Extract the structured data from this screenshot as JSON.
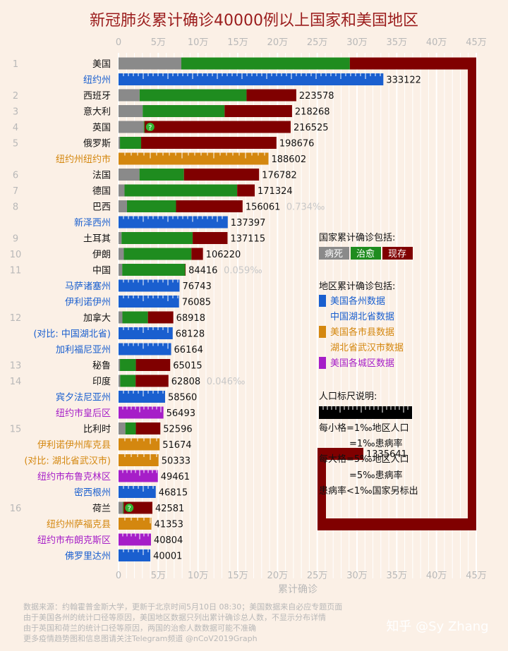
{
  "chart_data": {
    "type": "bar",
    "title": "新冠肺炎累计确诊40000例以上国家和美国地区",
    "xlabel": "累计确诊",
    "xlim": [
      0,
      450000
    ],
    "x_ticks": [
      "0",
      "5万",
      "10万",
      "15万",
      "20万",
      "25万",
      "30万",
      "35万",
      "40万",
      "45万"
    ],
    "grid": true,
    "colors": {
      "deaths": "#8a8a8a",
      "recovered": "#1f8c1f",
      "active": "#800000",
      "us_state": "#1a5fcf",
      "us_county": "#d4870f",
      "us_borough": "#a61ec8",
      "label_state": "#1a5fcf",
      "label_county": "#d4870f",
      "label_borough": "#a61ec8",
      "label_country": "#111111",
      "title": "#9b1c1c"
    },
    "rows": [
      {
        "rank": "1",
        "name": "美国",
        "kind": "country",
        "deaths": 79000,
        "recovered": 212000,
        "active": 1044641,
        "value_label": "1335641",
        "wrapped": true
      },
      {
        "rank": "",
        "name": "纽约州",
        "kind": "state",
        "total": 333122,
        "value_label": "333122"
      },
      {
        "rank": "2",
        "name": "西班牙",
        "kind": "country",
        "deaths": 26478,
        "recovered": 134560,
        "active": 62540,
        "value_label": "223578"
      },
      {
        "rank": "3",
        "name": "意大利",
        "kind": "country",
        "deaths": 30395,
        "recovered": 103031,
        "active": 84842,
        "value_label": "218268"
      },
      {
        "rank": "4",
        "name": "英国",
        "kind": "country",
        "deaths": 31662,
        "recovered": 1000,
        "active": 183863,
        "value_label": "216525",
        "note": "?"
      },
      {
        "rank": "5",
        "name": "俄罗斯",
        "kind": "country",
        "deaths": 1827,
        "recovered": 26608,
        "active": 170241,
        "value_label": "198676"
      },
      {
        "rank": "",
        "name": "纽约州纽约市",
        "kind": "county",
        "total": 188602,
        "value_label": "188602"
      },
      {
        "rank": "6",
        "name": "法国",
        "kind": "country",
        "deaths": 26313,
        "recovered": 55982,
        "active": 94487,
        "value_label": "176782"
      },
      {
        "rank": "7",
        "name": "德国",
        "kind": "country",
        "deaths": 7549,
        "recovered": 141700,
        "active": 22075,
        "value_label": "171324"
      },
      {
        "rank": "8",
        "name": "巴西",
        "kind": "country",
        "deaths": 10656,
        "recovered": 61685,
        "active": 83720,
        "value_label": "156061",
        "rate": "0.734‰"
      },
      {
        "rank": "",
        "name": "新泽西州",
        "kind": "state",
        "total": 137397,
        "value_label": "137397"
      },
      {
        "rank": "9",
        "name": "土耳其",
        "kind": "country",
        "deaths": 3786,
        "recovered": 89480,
        "active": 43849,
        "value_label": "137115"
      },
      {
        "rank": "10",
        "name": "伊朗",
        "kind": "country",
        "deaths": 6640,
        "recovered": 85064,
        "active": 14516,
        "value_label": "106220"
      },
      {
        "rank": "11",
        "name": "中国",
        "kind": "country",
        "deaths": 4637,
        "recovered": 79200,
        "active": 579,
        "value_label": "84416",
        "rate": "0.059‰"
      },
      {
        "rank": "",
        "name": "马萨诸塞州",
        "kind": "state",
        "total": 76743,
        "value_label": "76743"
      },
      {
        "rank": "",
        "name": "伊利诺伊州",
        "kind": "state",
        "total": 76085,
        "value_label": "76085"
      },
      {
        "rank": "12",
        "name": "加拿大",
        "kind": "country",
        "deaths": 4871,
        "recovered": 32109,
        "active": 31938,
        "value_label": "68918"
      },
      {
        "rank": "",
        "name": "(对比: 中国湖北省)",
        "kind": "state",
        "total": 68128,
        "value_label": "68128"
      },
      {
        "rank": "",
        "name": "加利福尼亚州",
        "kind": "state",
        "total": 66164,
        "value_label": "66164"
      },
      {
        "rank": "13",
        "name": "秘鲁",
        "kind": "country",
        "deaths": 1814,
        "recovered": 20000,
        "active": 43201,
        "value_label": "65015"
      },
      {
        "rank": "14",
        "name": "印度",
        "kind": "country",
        "deaths": 2109,
        "recovered": 19358,
        "active": 41341,
        "value_label": "62808",
        "rate": "0.046‰"
      },
      {
        "rank": "",
        "name": "宾夕法尼亚州",
        "kind": "state",
        "total": 58560,
        "value_label": "58560"
      },
      {
        "rank": "",
        "name": "纽约市皇后区",
        "kind": "borough",
        "total": 56493,
        "value_label": "56493"
      },
      {
        "rank": "15",
        "name": "比利时",
        "kind": "country",
        "deaths": 8581,
        "recovered": 13201,
        "active": 30814,
        "value_label": "52596"
      },
      {
        "rank": "",
        "name": "伊利诺伊州库克县",
        "kind": "county",
        "total": 51674,
        "value_label": "51674"
      },
      {
        "rank": "",
        "name": "(对比: 湖北省武汉市)",
        "kind": "county",
        "total": 50333,
        "value_label": "50333"
      },
      {
        "rank": "",
        "name": "纽约市布鲁克林区",
        "kind": "borough",
        "total": 49461,
        "value_label": "49461"
      },
      {
        "rank": "",
        "name": "密西根州",
        "kind": "state",
        "total": 46815,
        "value_label": "46815"
      },
      {
        "rank": "16",
        "name": "荷兰",
        "kind": "country",
        "deaths": 5422,
        "recovered": 1000,
        "active": 36159,
        "value_label": "42581",
        "note": "?"
      },
      {
        "rank": "",
        "name": "纽约州萨福克县",
        "kind": "county",
        "total": 41353,
        "value_label": "41353"
      },
      {
        "rank": "",
        "name": "纽约市布朗克斯区",
        "kind": "borough",
        "total": 40804,
        "value_label": "40804"
      },
      {
        "rank": "",
        "name": "佛罗里达州",
        "kind": "state",
        "total": 40001,
        "value_label": "40001"
      }
    ]
  },
  "legend": {
    "countries_title": "国家累计确诊包括:",
    "deaths": "病死",
    "recovered": "治愈",
    "active": "现存",
    "regions_title": "地区累计确诊包括:",
    "region_items": [
      {
        "kind": "state",
        "line1": "美国各州数据",
        "line2": "中国湖北省数据"
      },
      {
        "kind": "county",
        "line1": "美国各市县数据",
        "line2": "湖北省武汉市数据"
      },
      {
        "kind": "borough",
        "line1": "美国各城区数据",
        "line2": ""
      }
    ],
    "scale_title": "人口标尺说明:",
    "scale_lines": [
      "每小格=1‰地区人口",
      "=1‰患病率",
      "每大格=5‰地区人口",
      "=5‰患病率",
      "患病率<1‰国家另标出"
    ]
  },
  "footer": [
    "数据来源：约翰霍普金斯大学，更新于北京时间5月10日 08:30；美国数据来自必应专题页面",
    "由于美国各州的统计口径等原因，美国地区数据只列出累计确诊总人数，不显示分布详情",
    "由于英国和荷兰的统计口径等原因，两国的治愈人数数据可能不准确",
    "更多疫情趋势图和信息图请关注Telegram频道 @nCoV2019Graph"
  ],
  "watermark": "知乎 @Sy Zhang"
}
